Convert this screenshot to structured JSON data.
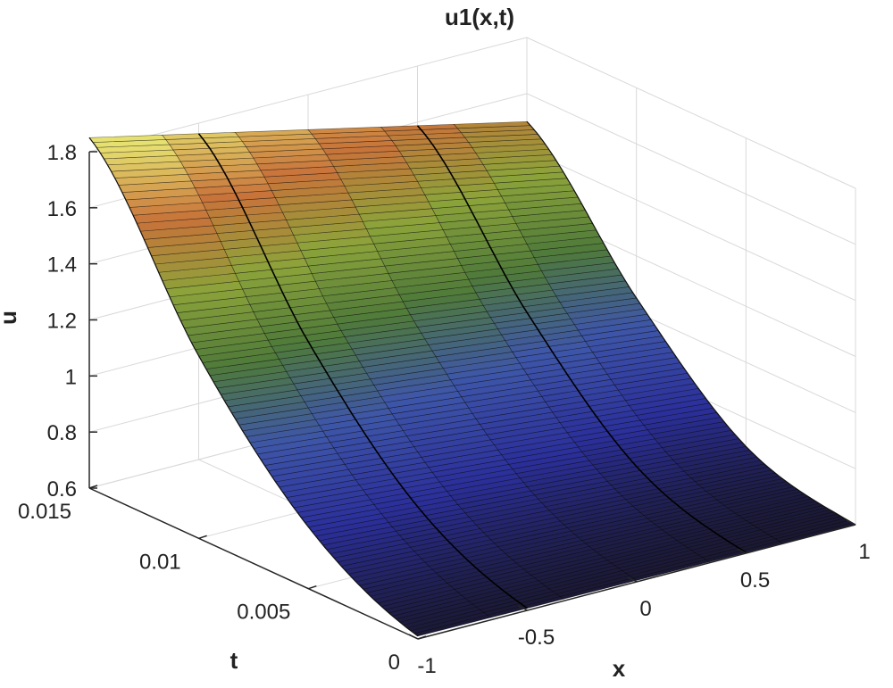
{
  "chart_data": {
    "type": "surface",
    "title": "u1(x,t)",
    "xlabel": "x",
    "ylabel": "t",
    "zlabel": "u",
    "xlim": [
      -1,
      1
    ],
    "ylim": [
      0,
      0.015
    ],
    "zlim": [
      0.6,
      1.8
    ],
    "x_ticks": [
      "-1",
      "-0.5",
      "0",
      "0.5",
      "1"
    ],
    "y_ticks": [
      "0",
      "0.005",
      "0.01",
      "0.015"
    ],
    "z_ticks": [
      "0.6",
      "0.8",
      "1",
      "1.2",
      "1.4",
      "1.6",
      "1.8"
    ],
    "grid": true,
    "colormap": [
      "#1a1830",
      "#2b2f9a",
      "#3e56a8",
      "#4f7a3a",
      "#8ca33a",
      "#c8733a",
      "#e6e070"
    ],
    "surface": {
      "x": [
        -1,
        -0.5,
        0,
        0.5,
        1
      ],
      "t": [
        0,
        0.005,
        0.01,
        0.015
      ],
      "u_at_x_min": [
        0.61,
        0.82,
        1.25,
        1.85
      ],
      "u_at_x_max": [
        0.6,
        0.7,
        1.05,
        1.5
      ],
      "highlighted_x_lines": [
        -0.5,
        0.5
      ]
    }
  }
}
